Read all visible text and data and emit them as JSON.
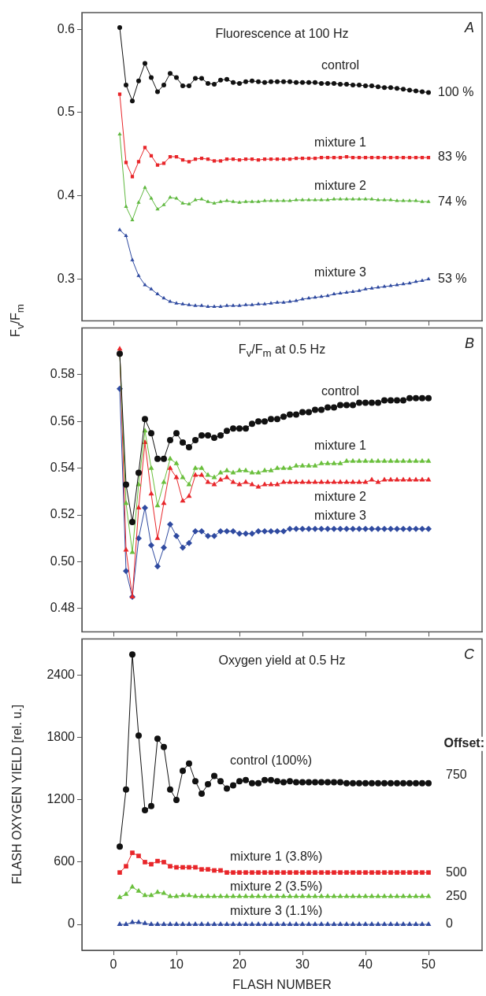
{
  "chart_data": [
    {
      "type": "line",
      "title": "Fluorescence at 100 Hz",
      "ylabel": "F$_{v}$/F$_{m}$",
      "tick_labels": "y",
      "x": [
        1,
        2,
        3,
        4,
        5,
        6,
        7,
        8,
        9,
        10,
        11,
        12,
        13,
        14,
        15,
        16,
        17,
        18,
        19,
        20,
        21,
        22,
        23,
        24,
        25,
        26,
        27,
        28,
        29,
        30,
        31,
        32,
        33,
        34,
        35,
        36,
        37,
        38,
        39,
        40,
        41,
        42,
        43,
        44,
        45,
        46,
        47,
        48,
        49,
        50
      ],
      "xlim": [
        -5,
        58.5
      ],
      "xticks": [
        {
          "value": 0,
          "label": null
        },
        {
          "value": 10,
          "label": null
        },
        {
          "value": 20,
          "label": null
        },
        {
          "value": 30,
          "label": null
        },
        {
          "value": 40,
          "label": null
        },
        {
          "value": 50,
          "label": null
        }
      ],
      "ylim": [
        0.25,
        0.62
      ],
      "yticks": [
        0.3,
        0.4,
        0.5,
        0.6
      ],
      "series": [
        {
          "name": "control",
          "color": "#111111",
          "marker": "circle",
          "values": [
            0.602,
            0.533,
            0.514,
            0.538,
            0.559,
            0.542,
            0.525,
            0.533,
            0.547,
            0.542,
            0.532,
            0.532,
            0.541,
            0.541,
            0.535,
            0.534,
            0.539,
            0.54,
            0.536,
            0.535,
            0.537,
            0.538,
            0.537,
            0.536,
            0.537,
            0.537,
            0.537,
            0.537,
            0.536,
            0.536,
            0.536,
            0.536,
            0.535,
            0.535,
            0.535,
            0.534,
            0.534,
            0.533,
            0.533,
            0.532,
            0.532,
            0.531,
            0.53,
            0.53,
            0.529,
            0.528,
            0.527,
            0.526,
            0.525,
            0.524
          ]
        },
        {
          "name": "mixture 1",
          "color": "#e8262a",
          "marker": "square",
          "values": [
            0.522,
            0.44,
            0.423,
            0.441,
            0.458,
            0.448,
            0.437,
            0.439,
            0.447,
            0.447,
            0.443,
            0.441,
            0.444,
            0.445,
            0.444,
            0.442,
            0.442,
            0.444,
            0.444,
            0.443,
            0.444,
            0.444,
            0.443,
            0.444,
            0.444,
            0.444,
            0.444,
            0.444,
            0.445,
            0.445,
            0.445,
            0.445,
            0.446,
            0.446,
            0.446,
            0.446,
            0.447,
            0.446,
            0.446,
            0.446,
            0.446,
            0.446,
            0.446,
            0.446,
            0.446,
            0.446,
            0.446,
            0.446,
            0.446,
            0.446
          ]
        },
        {
          "name": "mixture 2",
          "color": "#5fb83f",
          "marker": "triangle",
          "values": [
            0.474,
            0.387,
            0.371,
            0.392,
            0.41,
            0.397,
            0.384,
            0.389,
            0.398,
            0.397,
            0.391,
            0.39,
            0.395,
            0.396,
            0.393,
            0.391,
            0.393,
            0.394,
            0.393,
            0.392,
            0.393,
            0.393,
            0.393,
            0.394,
            0.394,
            0.394,
            0.394,
            0.394,
            0.395,
            0.395,
            0.395,
            0.395,
            0.395,
            0.395,
            0.396,
            0.396,
            0.396,
            0.396,
            0.396,
            0.396,
            0.396,
            0.395,
            0.395,
            0.395,
            0.394,
            0.394,
            0.394,
            0.394,
            0.393,
            0.393
          ]
        },
        {
          "name": "mixture 3",
          "color": "#2f4aa0",
          "marker": "triangle",
          "values": [
            0.359,
            0.352,
            0.323,
            0.304,
            0.293,
            0.288,
            0.282,
            0.277,
            0.273,
            0.271,
            0.27,
            0.269,
            0.268,
            0.268,
            0.267,
            0.267,
            0.267,
            0.268,
            0.268,
            0.268,
            0.269,
            0.269,
            0.27,
            0.27,
            0.271,
            0.272,
            0.272,
            0.273,
            0.274,
            0.276,
            0.277,
            0.278,
            0.279,
            0.28,
            0.282,
            0.283,
            0.284,
            0.285,
            0.286,
            0.288,
            0.289,
            0.29,
            0.291,
            0.292,
            0.293,
            0.294,
            0.295,
            0.297,
            0.298,
            0.3
          ]
        }
      ],
      "annotations": [
        "A",
        "100 %",
        "83 %",
        "74 %",
        "53 %"
      ]
    },
    {
      "type": "line",
      "title": "F$_{v}$/F$_{m}$   at 0.5 Hz",
      "tick_labels": "y",
      "x": [
        1,
        2,
        3,
        4,
        5,
        6,
        7,
        8,
        9,
        10,
        11,
        12,
        13,
        14,
        15,
        16,
        17,
        18,
        19,
        20,
        21,
        22,
        23,
        24,
        25,
        26,
        27,
        28,
        29,
        30,
        31,
        32,
        33,
        34,
        35,
        36,
        37,
        38,
        39,
        40,
        41,
        42,
        43,
        44,
        45,
        46,
        47,
        48,
        49,
        50
      ],
      "xlim": [
        -5,
        58.5
      ],
      "xticks": [
        {
          "value": 0,
          "label": null
        },
        {
          "value": 10,
          "label": null
        },
        {
          "value": 20,
          "label": null
        },
        {
          "value": 30,
          "label": null
        },
        {
          "value": 40,
          "label": null
        },
        {
          "value": 50,
          "label": null
        }
      ],
      "ylim": [
        0.47,
        0.6
      ],
      "yticks": [
        0.48,
        {
          "value": 0.5,
          "label": "0.50"
        },
        0.52,
        0.54,
        0.56,
        0.58
      ],
      "series": [
        {
          "name": "control",
          "color": "#111111",
          "marker": "circle",
          "values": [
            0.589,
            0.533,
            0.517,
            0.538,
            0.561,
            0.555,
            0.544,
            0.544,
            0.552,
            0.555,
            0.551,
            0.549,
            0.552,
            0.554,
            0.554,
            0.553,
            0.554,
            0.556,
            0.557,
            0.557,
            0.557,
            0.559,
            0.56,
            0.56,
            0.561,
            0.561,
            0.562,
            0.563,
            0.563,
            0.564,
            0.564,
            0.565,
            0.565,
            0.566,
            0.566,
            0.567,
            0.567,
            0.567,
            0.568,
            0.568,
            0.568,
            0.568,
            0.569,
            0.569,
            0.569,
            0.569,
            0.57,
            0.57,
            0.57,
            0.57
          ]
        },
        {
          "name": "mixture 1",
          "color": "#6abf3c",
          "marker": "triangle",
          "values": [
            0.589,
            0.525,
            0.504,
            0.533,
            0.556,
            0.54,
            0.524,
            0.534,
            0.544,
            0.542,
            0.536,
            0.533,
            0.54,
            0.54,
            0.537,
            0.536,
            0.538,
            0.539,
            0.538,
            0.539,
            0.539,
            0.538,
            0.538,
            0.539,
            0.539,
            0.54,
            0.54,
            0.54,
            0.541,
            0.541,
            0.541,
            0.541,
            0.542,
            0.542,
            0.542,
            0.542,
            0.543,
            0.543,
            0.543,
            0.543,
            0.543,
            0.543,
            0.543,
            0.543,
            0.543,
            0.543,
            0.543,
            0.543,
            0.543,
            0.543
          ]
        },
        {
          "name": "mixture 2",
          "color": "#e8262a",
          "marker": "triangle",
          "values": [
            0.591,
            0.505,
            0.485,
            0.523,
            0.551,
            0.529,
            0.51,
            0.525,
            0.54,
            0.536,
            0.526,
            0.528,
            0.537,
            0.537,
            0.534,
            0.533,
            0.535,
            0.536,
            0.534,
            0.533,
            0.534,
            0.533,
            0.532,
            0.533,
            0.533,
            0.533,
            0.534,
            0.534,
            0.534,
            0.534,
            0.534,
            0.534,
            0.534,
            0.534,
            0.534,
            0.534,
            0.534,
            0.534,
            0.534,
            0.534,
            0.535,
            0.534,
            0.535,
            0.535,
            0.535,
            0.535,
            0.535,
            0.535,
            0.535,
            0.535
          ]
        },
        {
          "name": "mixture 3",
          "color": "#2f4aa0",
          "marker": "diamond",
          "values": [
            0.574,
            0.496,
            0.485,
            0.51,
            0.523,
            0.507,
            0.498,
            0.506,
            0.516,
            0.511,
            0.506,
            0.508,
            0.513,
            0.513,
            0.511,
            0.511,
            0.513,
            0.513,
            0.513,
            0.512,
            0.512,
            0.512,
            0.513,
            0.513,
            0.513,
            0.513,
            0.513,
            0.514,
            0.514,
            0.514,
            0.514,
            0.514,
            0.514,
            0.514,
            0.514,
            0.514,
            0.514,
            0.514,
            0.514,
            0.514,
            0.514,
            0.514,
            0.514,
            0.514,
            0.514,
            0.514,
            0.514,
            0.514,
            0.514,
            0.514
          ]
        }
      ],
      "annotations": [
        "B"
      ]
    },
    {
      "type": "line",
      "title": "Oxygen yield at 0.5 Hz",
      "xlabel": "FLASH NUMBER",
      "ylabel": "FLASH OXYGEN YIELD [rel. u.]",
      "x": [
        1,
        2,
        3,
        4,
        5,
        6,
        7,
        8,
        9,
        10,
        11,
        12,
        13,
        14,
        15,
        16,
        17,
        18,
        19,
        20,
        21,
        22,
        23,
        24,
        25,
        26,
        27,
        28,
        29,
        30,
        31,
        32,
        33,
        34,
        35,
        36,
        37,
        38,
        39,
        40,
        41,
        42,
        43,
        44,
        45,
        46,
        47,
        48,
        49,
        50
      ],
      "xlim": [
        -5,
        58.5
      ],
      "xticks": [
        0,
        10,
        20,
        30,
        40,
        50
      ],
      "ylim": [
        -250,
        2750
      ],
      "yticks": [
        0,
        600,
        1200,
        1800,
        2400
      ],
      "series": [
        {
          "name": "control (100%)",
          "color": "#111111",
          "marker": "circle",
          "values": [
            750,
            1300,
            2600,
            1820,
            1100,
            1140,
            1790,
            1710,
            1300,
            1200,
            1480,
            1550,
            1380,
            1260,
            1350,
            1430,
            1380,
            1310,
            1340,
            1380,
            1390,
            1360,
            1360,
            1390,
            1390,
            1380,
            1370,
            1380,
            1370,
            1370,
            1370,
            1370,
            1370,
            1370,
            1370,
            1370,
            1360,
            1360,
            1360,
            1360,
            1360,
            1360,
            1360,
            1360,
            1360,
            1360,
            1360,
            1360,
            1360,
            1360
          ]
        },
        {
          "name": "mixture 1 (3.8%)",
          "color": "#e8262a",
          "marker": "square",
          "values": [
            500,
            560,
            690,
            660,
            600,
            580,
            610,
            600,
            560,
            550,
            550,
            550,
            550,
            530,
            530,
            520,
            520,
            500,
            500,
            500,
            500,
            500,
            500,
            500,
            500,
            500,
            500,
            500,
            500,
            500,
            500,
            500,
            500,
            500,
            500,
            500,
            500,
            500,
            500,
            500,
            500,
            500,
            500,
            500,
            500,
            500,
            500,
            500,
            500,
            500
          ]
        },
        {
          "name": "mixture 2 (3.5%)",
          "color": "#6abf3c",
          "marker": "triangle",
          "values": [
            260,
            290,
            360,
            320,
            280,
            280,
            310,
            300,
            270,
            270,
            280,
            280,
            270,
            270,
            270,
            270,
            270,
            270,
            270,
            270,
            270,
            270,
            270,
            270,
            270,
            270,
            270,
            270,
            270,
            270,
            270,
            270,
            270,
            270,
            270,
            270,
            270,
            270,
            270,
            270,
            270,
            270,
            270,
            270,
            270,
            270,
            270,
            270,
            270,
            270
          ]
        },
        {
          "name": "mixture 3 (1.1%)",
          "color": "#2f4aa0",
          "marker": "triangle",
          "values": [
            0,
            0,
            20,
            20,
            10,
            0,
            0,
            0,
            0,
            0,
            0,
            0,
            0,
            0,
            0,
            0,
            0,
            0,
            0,
            0,
            0,
            0,
            0,
            0,
            0,
            0,
            0,
            0,
            0,
            0,
            0,
            0,
            0,
            0,
            0,
            0,
            0,
            0,
            0,
            0,
            0,
            0,
            0,
            0,
            0,
            0,
            0,
            0,
            0,
            0
          ]
        }
      ],
      "annotations": [
        "C",
        "Offset:",
        "750",
        "500",
        "250",
        "0"
      ]
    }
  ]
}
